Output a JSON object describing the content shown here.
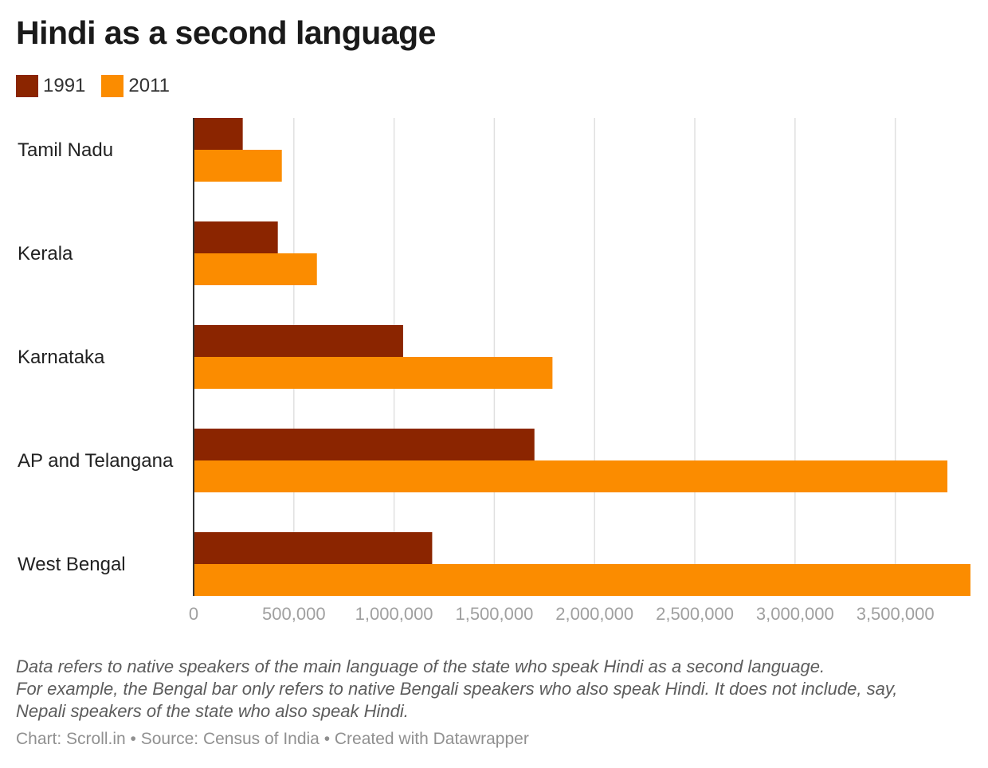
{
  "title": "Hindi as a second language",
  "legend": [
    {
      "label": "1991",
      "color": "#8b2500"
    },
    {
      "label": "2011",
      "color": "#fb8c00"
    }
  ],
  "chart_data": {
    "type": "bar",
    "orientation": "horizontal",
    "title": "Hindi as a second language",
    "categories": [
      "Tamil Nadu",
      "Kerala",
      "Karnataka",
      "AP and Telangana",
      "West Bengal"
    ],
    "series": [
      {
        "name": "1991",
        "color": "#8b2500",
        "values": [
          245000,
          420000,
          1045000,
          1700000,
          1190000
        ]
      },
      {
        "name": "2011",
        "color": "#fb8c00",
        "values": [
          440000,
          615000,
          1790000,
          3760000,
          3875000
        ]
      }
    ],
    "ticks": [
      0,
      500000,
      1000000,
      1500000,
      2000000,
      2500000,
      3000000,
      3500000
    ],
    "tick_labels": [
      "0",
      "500,000",
      "1,000,000",
      "1,500,000",
      "2,000,000",
      "2,500,000",
      "3,000,000",
      "3,500,000"
    ],
    "xlim": [
      0,
      3875000
    ],
    "xlabel": "",
    "ylabel": "",
    "grid": true,
    "legend_position": "top-left"
  },
  "notes": [
    "Data refers to native speakers of the main language of the state who speak Hindi as a second language.",
    "For example, the Bengal bar only refers to native Bengali speakers who also speak Hindi. It does not include, say,",
    "Nepali speakers of the state who also speak Hindi."
  ],
  "credit": "Chart: Scroll.in • Source: Census of India • Created with Datawrapper"
}
